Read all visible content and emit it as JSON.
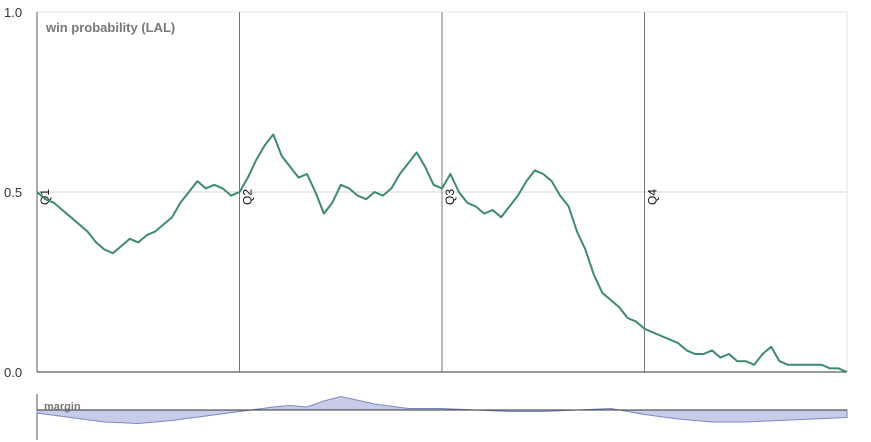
{
  "chart_data": [
    {
      "type": "line",
      "title": "win probability (LAL)",
      "xlabel": "",
      "ylabel": "",
      "ylim": [
        0,
        1
      ],
      "xlim": [
        0,
        48
      ],
      "y_ticks": [
        "1.0",
        "0.5",
        "0.0"
      ],
      "quarter_markers": [
        {
          "label": "Q1",
          "x": 0
        },
        {
          "label": "Q2",
          "x": 12
        },
        {
          "label": "Q3",
          "x": 24
        },
        {
          "label": "Q4",
          "x": 36
        }
      ],
      "grid": true,
      "line_color": "#3f8a6d",
      "x": [
        0,
        0.5,
        1,
        1.5,
        2,
        2.5,
        3,
        3.5,
        4,
        4.5,
        5,
        5.5,
        6,
        6.5,
        7,
        7.5,
        8,
        8.5,
        9,
        9.5,
        10,
        10.5,
        11,
        11.5,
        12,
        12.5,
        13,
        13.5,
        14,
        14.5,
        15,
        15.5,
        16,
        16.5,
        17,
        17.5,
        18,
        18.5,
        19,
        19.5,
        20,
        20.5,
        21,
        21.5,
        22,
        22.5,
        23,
        23.5,
        24,
        24.5,
        25,
        25.5,
        26,
        26.5,
        27,
        27.5,
        28,
        28.5,
        29,
        29.5,
        30,
        30.5,
        31,
        31.5,
        32,
        32.5,
        33,
        33.5,
        34,
        34.5,
        35,
        35.5,
        36,
        36.5,
        37,
        37.5,
        38,
        38.5,
        39,
        39.5,
        40,
        40.5,
        41,
        41.5,
        42,
        42.5,
        43,
        43.5,
        44,
        44.5,
        45,
        45.5,
        46,
        46.5,
        47,
        47.5,
        48
      ],
      "values": [
        0.5,
        0.48,
        0.47,
        0.45,
        0.43,
        0.41,
        0.39,
        0.36,
        0.34,
        0.33,
        0.35,
        0.37,
        0.36,
        0.38,
        0.39,
        0.41,
        0.43,
        0.47,
        0.5,
        0.53,
        0.51,
        0.52,
        0.51,
        0.49,
        0.5,
        0.54,
        0.59,
        0.63,
        0.66,
        0.6,
        0.57,
        0.54,
        0.55,
        0.5,
        0.44,
        0.47,
        0.52,
        0.51,
        0.49,
        0.48,
        0.5,
        0.49,
        0.51,
        0.55,
        0.58,
        0.61,
        0.57,
        0.52,
        0.51,
        0.55,
        0.5,
        0.47,
        0.46,
        0.44,
        0.45,
        0.43,
        0.46,
        0.49,
        0.53,
        0.56,
        0.55,
        0.53,
        0.49,
        0.46,
        0.39,
        0.34,
        0.27,
        0.22,
        0.2,
        0.18,
        0.15,
        0.14,
        0.12,
        0.11,
        0.1,
        0.09,
        0.08,
        0.06,
        0.05,
        0.05,
        0.06,
        0.04,
        0.05,
        0.03,
        0.03,
        0.02,
        0.05,
        0.07,
        0.03,
        0.02,
        0.02,
        0.02,
        0.02,
        0.02,
        0.01,
        0.01,
        0.0
      ]
    },
    {
      "type": "area",
      "title": "margin",
      "fill_color": "#c7cce8",
      "stroke_color": "#7f88c0",
      "x": [
        0,
        2,
        4,
        6,
        8,
        10,
        12,
        14,
        15,
        16,
        17,
        18,
        20,
        22,
        24,
        26,
        28,
        30,
        32,
        34,
        35,
        36,
        38,
        40,
        42,
        44,
        46,
        48
      ],
      "values": [
        -2,
        -5,
        -8,
        -9,
        -7,
        -4,
        -1,
        2,
        3,
        2,
        6,
        9,
        4,
        1,
        1,
        0,
        -1,
        -1,
        0,
        1,
        -1,
        -3,
        -6,
        -8,
        -8,
        -7,
        -6,
        -5
      ]
    }
  ]
}
